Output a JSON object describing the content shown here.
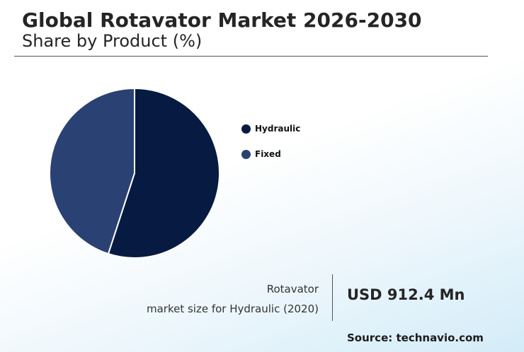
{
  "header": {
    "title": "Global Rotavator Market 2026-2030",
    "subtitle": "Share by Product (%)"
  },
  "chart_data": {
    "type": "pie",
    "title": "Global Rotavator Market 2026-2030",
    "subtitle": "Share by Product (%)",
    "categories": [
      "Hydraulic",
      "Fixed"
    ],
    "values": [
      55,
      45
    ],
    "colors": [
      "#071a41",
      "#2a4273"
    ],
    "start_angle": "12 o'clock",
    "direction": "clockwise",
    "legend": "right"
  },
  "kpi": {
    "label_line1": "Rotavator",
    "label_line2": "market size for Hydraulic (2020)",
    "value": "USD 912.4 Mn"
  },
  "source": "Source: technavio.com"
}
